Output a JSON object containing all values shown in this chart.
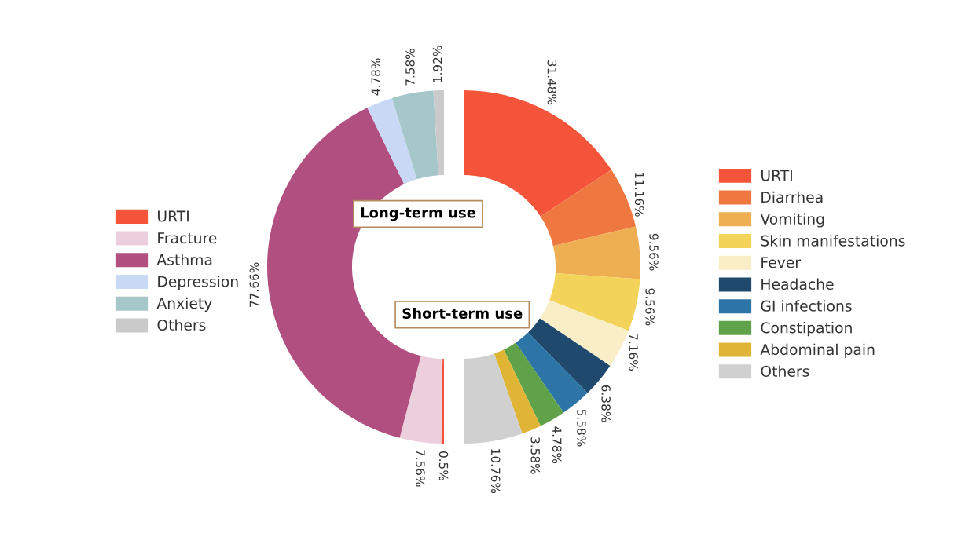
{
  "chart_data": {
    "type": "donut",
    "legend": "right",
    "annotations": [
      "Long-term use",
      "Short-term use"
    ],
    "categories": [
      "URTI",
      "Diarrhea",
      "Vomiting",
      "Skin manifestations",
      "Fever",
      "Headache",
      "GI infections",
      "Constipation",
      "Abdominal pain",
      "Others",
      "URTI",
      "Fracture",
      "Asthma",
      "Depression",
      "Anxiety",
      "Others"
    ],
    "values": [
      31.48,
      11.16,
      9.56,
      9.56,
      7.16,
      6.38,
      5.58,
      4.78,
      3.58,
      10.76,
      0.5,
      7.56,
      77.66,
      4.78,
      7.58,
      1.92
    ],
    "value_labels": [
      "31.48%",
      "11.16%",
      "9.56%",
      "9.56%",
      "7.16%",
      "6.38%",
      "5.58%",
      "4.78%",
      "3.58%",
      "10.76%",
      "0.5%",
      "7.56%",
      "77.66%",
      "4.78%",
      "7.58%",
      "1.92%"
    ],
    "colors": [
      "#f4553a",
      "#ef7840",
      "#eeae52",
      "#f3d35a",
      "#faeec7",
      "#1f4a6e",
      "#2c75a6",
      "#60a24a",
      "#e0b535",
      "#d0d0d0",
      "#f4553a",
      "#eccfdc",
      "#b04f80",
      "#c9d8f4",
      "#a5c7ca",
      "#cacaca"
    ]
  }
}
